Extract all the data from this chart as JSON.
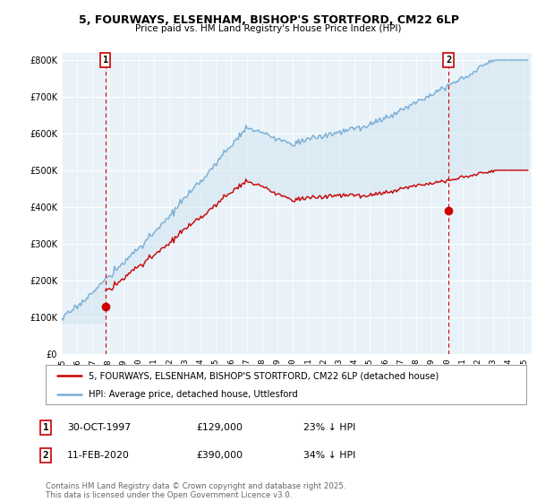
{
  "title1": "5, FOURWAYS, ELSENHAM, BISHOP'S STORTFORD, CM22 6LP",
  "title2": "Price paid vs. HM Land Registry's House Price Index (HPI)",
  "ylabel_vals": [
    0,
    100000,
    200000,
    300000,
    400000,
    500000,
    600000,
    700000,
    800000
  ],
  "ylim": [
    0,
    820000
  ],
  "xlim_start": 1995.0,
  "xlim_end": 2025.5,
  "sale1_date": 1997.83,
  "sale1_price": 129000,
  "sale1_label": "1",
  "sale2_date": 2020.1,
  "sale2_price": 390000,
  "sale2_label": "2",
  "legend1": "5, FOURWAYS, ELSENHAM, BISHOP'S STORTFORD, CM22 6LP (detached house)",
  "legend2": "HPI: Average price, detached house, Uttlesford",
  "table_row1": [
    "1",
    "30-OCT-1997",
    "£129,000",
    "23% ↓ HPI"
  ],
  "table_row2": [
    "2",
    "11-FEB-2020",
    "£390,000",
    "34% ↓ HPI"
  ],
  "footer": "Contains HM Land Registry data © Crown copyright and database right 2025.\nThis data is licensed under the Open Government Licence v3.0.",
  "red_color": "#cc0000",
  "blue_color": "#7aadd4",
  "blue_fill": "#d0e4f0",
  "sale_marker_color": "#cc0000",
  "vline_color": "#cc0000",
  "bg_color": "#ffffff",
  "grid_color": "#cccccc"
}
